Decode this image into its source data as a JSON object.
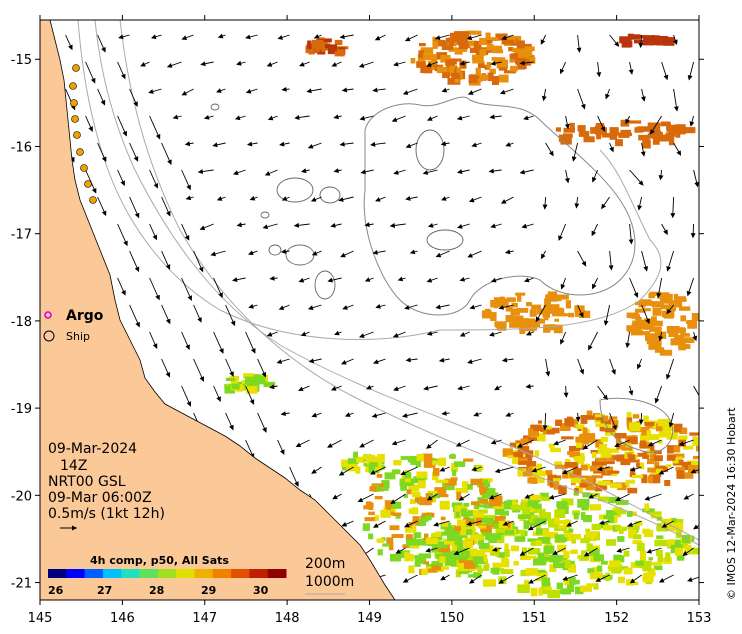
{
  "map": {
    "lon_ticks": [
      "145",
      "146",
      "147",
      "148",
      "149",
      "150",
      "151",
      "152",
      "153"
    ],
    "lat_ticks": [
      "-15",
      "-16",
      "-17",
      "-18",
      "-19",
      "-20",
      "-21"
    ],
    "lon_range": [
      145,
      153
    ],
    "lat_range": [
      -21.2,
      -14.55
    ]
  },
  "legend": {
    "argo_label": "Argo",
    "ship_label": "Ship",
    "argo_color": "#e000e0"
  },
  "info": {
    "date": "09-Mar-2024",
    "hour": "14Z",
    "product": "NRT00 GSL",
    "analysis_time": "09-Mar 06:00Z",
    "scale": "0.5m/s (1kt 12h)"
  },
  "colorbar": {
    "title": "4h comp, p50, All Sats",
    "ticks": [
      "26",
      "27",
      "28",
      "29",
      "30"
    ]
  },
  "contours": {
    "label_200": "200m",
    "label_1000": "1000m"
  },
  "credit": "© IMOS 12-Mar-2024 16:30 Hobart",
  "colors": {
    "land": "#fbc898",
    "sst_orange": "#e8900e",
    "sst_darkorange": "#d96a0c",
    "sst_red": "#b8340a",
    "sst_yellow": "#e8e000",
    "sst_green": "#7cd820",
    "reef_outline": "#888888",
    "argo_float": "#f0a000"
  }
}
